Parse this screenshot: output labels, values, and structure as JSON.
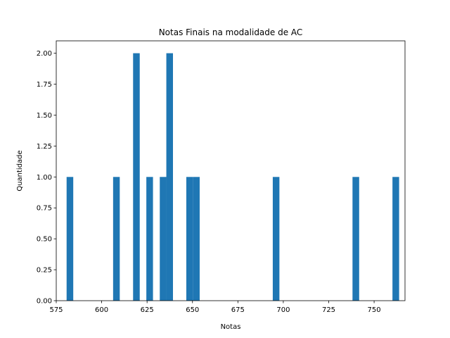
{
  "chart_data": {
    "type": "bar",
    "title": "Notas Finais na modalidade de AC",
    "xlabel": "Notas",
    "ylabel": "Quantidade",
    "xlim": [
      575,
      767
    ],
    "ylim": [
      0,
      2.1
    ],
    "bin_width": 3.66,
    "x_ticks": [
      575,
      600,
      625,
      650,
      675,
      700,
      725,
      750
    ],
    "x_tick_labels": [
      "575",
      "600",
      "625",
      "650",
      "675",
      "700",
      "725",
      "750"
    ],
    "y_ticks": [
      0.0,
      0.25,
      0.5,
      0.75,
      1.0,
      1.25,
      1.5,
      1.75,
      2.0
    ],
    "y_tick_labels": [
      "0.00",
      "0.25",
      "0.50",
      "0.75",
      "1.00",
      "1.25",
      "1.50",
      "1.75",
      "2.00"
    ],
    "bins": [
      {
        "x_start": 580.7,
        "value": 1
      },
      {
        "x_start": 606.3,
        "value": 1
      },
      {
        "x_start": 617.3,
        "value": 2
      },
      {
        "x_start": 624.6,
        "value": 1
      },
      {
        "x_start": 632.0,
        "value": 1
      },
      {
        "x_start": 635.6,
        "value": 2
      },
      {
        "x_start": 646.6,
        "value": 1
      },
      {
        "x_start": 650.3,
        "value": 1
      },
      {
        "x_start": 694.2,
        "value": 1
      },
      {
        "x_start": 738.1,
        "value": 1
      },
      {
        "x_start": 760.1,
        "value": 1
      }
    ],
    "grid": false,
    "bar_color": "#1f77b4"
  }
}
